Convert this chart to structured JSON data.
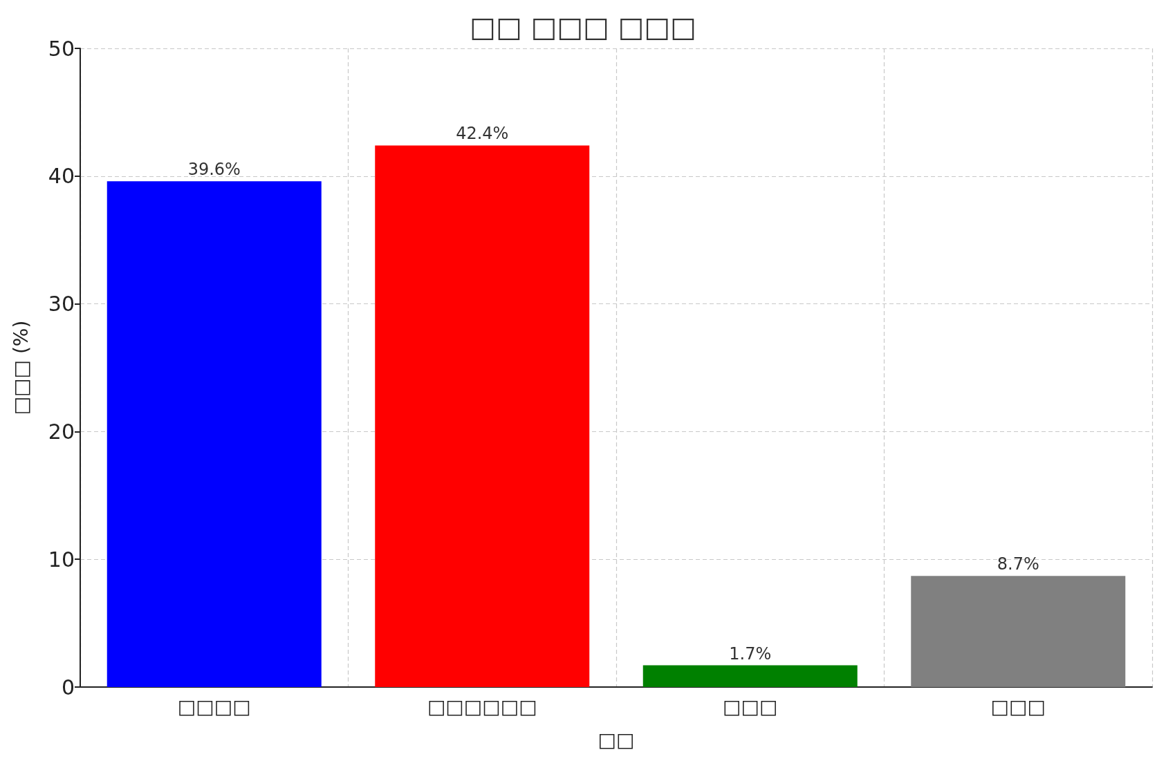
{
  "chart_data": {
    "type": "bar",
    "title": "□□ □□□ □□□",
    "xlabel": "□□",
    "ylabel": "□□□ (%)",
    "categories": [
      "□□□□",
      "□□□□□□",
      "□□□",
      "□□□"
    ],
    "values": [
      39.6,
      42.4,
      1.7,
      8.7
    ],
    "colors": [
      "#0000ff",
      "#ff0000",
      "#008000",
      "#808080"
    ],
    "value_labels": [
      "39.6%",
      "42.4%",
      "1.7%",
      "8.7%"
    ],
    "ylim": [
      0,
      50
    ],
    "yticks": [
      0,
      10,
      20,
      30,
      40,
      50
    ],
    "grid": true
  }
}
